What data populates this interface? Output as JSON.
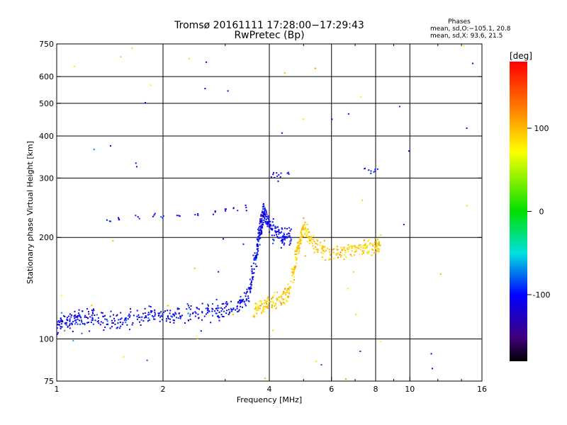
{
  "chart_data": {
    "type": "scatter",
    "title": "Tromsø 20161111 17:28:00−17:29:43",
    "subtitle": "RwPretec (Bp)",
    "xlabel": "Frequency [MHz]",
    "ylabel": "Stationary phase Virtual Height [km]",
    "x_scale": "log",
    "y_scale": "log",
    "xlim": [
      1,
      16
    ],
    "ylim": [
      75,
      750
    ],
    "x_ticks": [
      1,
      2,
      4,
      6,
      8,
      10,
      16
    ],
    "y_ticks": [
      75,
      100,
      200,
      300,
      400,
      500,
      600,
      750
    ],
    "x_gridlines": [
      2,
      4,
      6,
      8,
      10
    ],
    "y_gridlines": [
      100,
      200,
      300,
      400,
      500,
      600
    ],
    "grid": true,
    "colorbar": {
      "label": "[deg]",
      "range": [
        -180,
        180
      ],
      "ticks": [
        100,
        0,
        -100
      ]
    },
    "stats": {
      "heading": "Phases",
      "line1": "mean, sd,O:−105.1, 20.8",
      "line2": "mean, sd,X:  93.6, 21.5"
    },
    "series": [
      {
        "mode": "O",
        "phase_mean": -105.1,
        "phase_sd": 20.8,
        "trace": [
          [
            1.0,
            108
          ],
          [
            1.05,
            112
          ],
          [
            1.12,
            115
          ],
          [
            1.2,
            117
          ],
          [
            1.3,
            114
          ],
          [
            1.45,
            113
          ],
          [
            1.6,
            114
          ],
          [
            1.8,
            116
          ],
          [
            2.0,
            117
          ],
          [
            2.2,
            118
          ],
          [
            2.5,
            120
          ],
          [
            2.8,
            122
          ],
          [
            3.0,
            123
          ],
          [
            3.3,
            126
          ],
          [
            3.5,
            135
          ],
          [
            3.6,
            160
          ],
          [
            3.7,
            185
          ],
          [
            3.75,
            205
          ],
          [
            3.8,
            220
          ],
          [
            3.85,
            240
          ],
          [
            3.9,
            230
          ],
          [
            4.0,
            215
          ],
          [
            4.2,
            205
          ],
          [
            4.4,
            200
          ],
          [
            4.6,
            205
          ]
        ],
        "cluster_upper": [
          [
            1.4,
            225
          ],
          [
            1.5,
            228
          ],
          [
            1.7,
            230
          ],
          [
            1.9,
            232
          ],
          [
            2.0,
            228
          ],
          [
            2.2,
            230
          ],
          [
            2.5,
            235
          ],
          [
            2.8,
            238
          ],
          [
            3.0,
            240
          ],
          [
            3.2,
            242
          ],
          [
            3.5,
            244
          ]
        ],
        "cluster_high": [
          [
            4.1,
            305
          ],
          [
            4.2,
            310
          ],
          [
            4.3,
            308
          ],
          [
            4.5,
            310
          ],
          [
            7.5,
            318
          ],
          [
            7.8,
            312
          ],
          [
            8.0,
            320
          ]
        ]
      },
      {
        "mode": "X",
        "phase_mean": 93.6,
        "phase_sd": 21.5,
        "trace": [
          [
            3.6,
            120
          ],
          [
            3.8,
            125
          ],
          [
            4.0,
            128
          ],
          [
            4.3,
            130
          ],
          [
            4.5,
            135
          ],
          [
            4.7,
            160
          ],
          [
            4.8,
            185
          ],
          [
            4.9,
            200
          ],
          [
            5.0,
            215
          ],
          [
            5.2,
            200
          ],
          [
            5.5,
            185
          ],
          [
            6.0,
            180
          ],
          [
            6.5,
            182
          ],
          [
            7.0,
            185
          ],
          [
            7.5,
            188
          ],
          [
            8.0,
            188
          ],
          [
            8.3,
            190
          ]
        ]
      }
    ]
  }
}
